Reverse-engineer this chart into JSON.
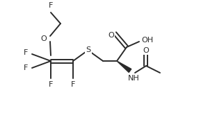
{
  "bg": "#ffffff",
  "lw": 1.4,
  "fs": 8.0,
  "color": "#2a2a2a",
  "figsize": [
    3.22,
    1.76
  ],
  "dpi": 100,
  "xlim": [
    0,
    322
  ],
  "ylim": [
    0,
    176
  ]
}
